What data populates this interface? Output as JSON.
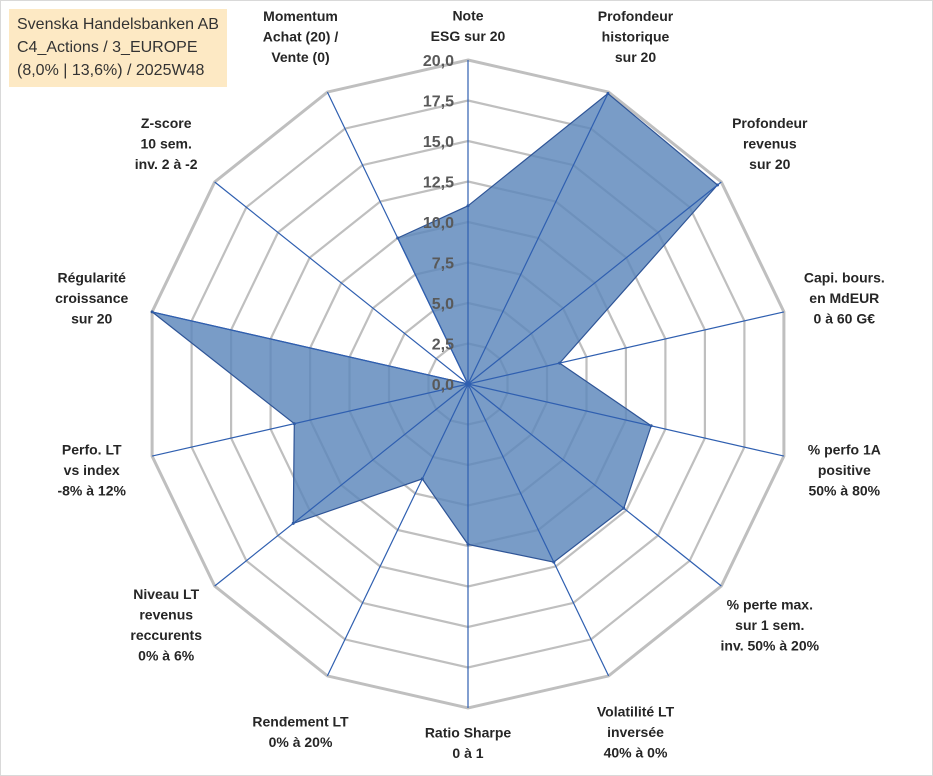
{
  "info": {
    "line1": "Svenska Handelsbanken AB",
    "line2": "C4_Actions / 3_EUROPE",
    "line3": "(8,0% | 13,6%) / 2025W48"
  },
  "colors": {
    "fill": "#5b86bb",
    "stroke": "#2f5597",
    "grid": "#bfbfbf",
    "spoke": "#2f5fb0",
    "info_bg": "#fde9c4"
  },
  "chart_data": {
    "type": "radar",
    "title": "",
    "rmin": 0,
    "rmax": 20,
    "ticks": [
      "0,0",
      "2,5",
      "5,0",
      "7,5",
      "10,0",
      "12,5",
      "15,0",
      "17,5",
      "20,0"
    ],
    "categories": [
      [
        "Note",
        "ESG sur 20"
      ],
      [
        "Profondeur",
        "historique",
        "sur 20"
      ],
      [
        "Profondeur",
        "revenus",
        "sur 20"
      ],
      [
        "Capi. bours.",
        "en MdEUR",
        "0 à 60 G€"
      ],
      [
        "% perfo 1A",
        "positive",
        "50% à 80%"
      ],
      [
        "% perte max.",
        "sur 1 sem.",
        "inv. 50% à 20%"
      ],
      [
        "Volatilité LT",
        "inversée",
        "40% à 0%"
      ],
      [
        "Ratio Sharpe",
        "0 à 1"
      ],
      [
        "Rendement LT",
        "0% à 20%"
      ],
      [
        "Niveau LT",
        "revenus",
        "reccurents",
        "0% à 6%"
      ],
      [
        "Perfo. LT",
        "vs index",
        "-8% à 12%"
      ],
      [
        "Régularité",
        "croissance",
        "sur 20"
      ],
      [
        "Z-score",
        "10 sem.",
        "inv. 2 à -2"
      ],
      [
        "Momentum",
        "Achat (20) /",
        "Vente (0)"
      ]
    ],
    "series": [
      {
        "name": "Svenska Handelsbanken AB",
        "values": [
          11.0,
          19.9,
          19.7,
          5.8,
          11.6,
          12.3,
          12.2,
          9.9,
          6.5,
          13.8,
          11.0,
          20.0,
          0.0,
          10.0
        ]
      }
    ]
  }
}
